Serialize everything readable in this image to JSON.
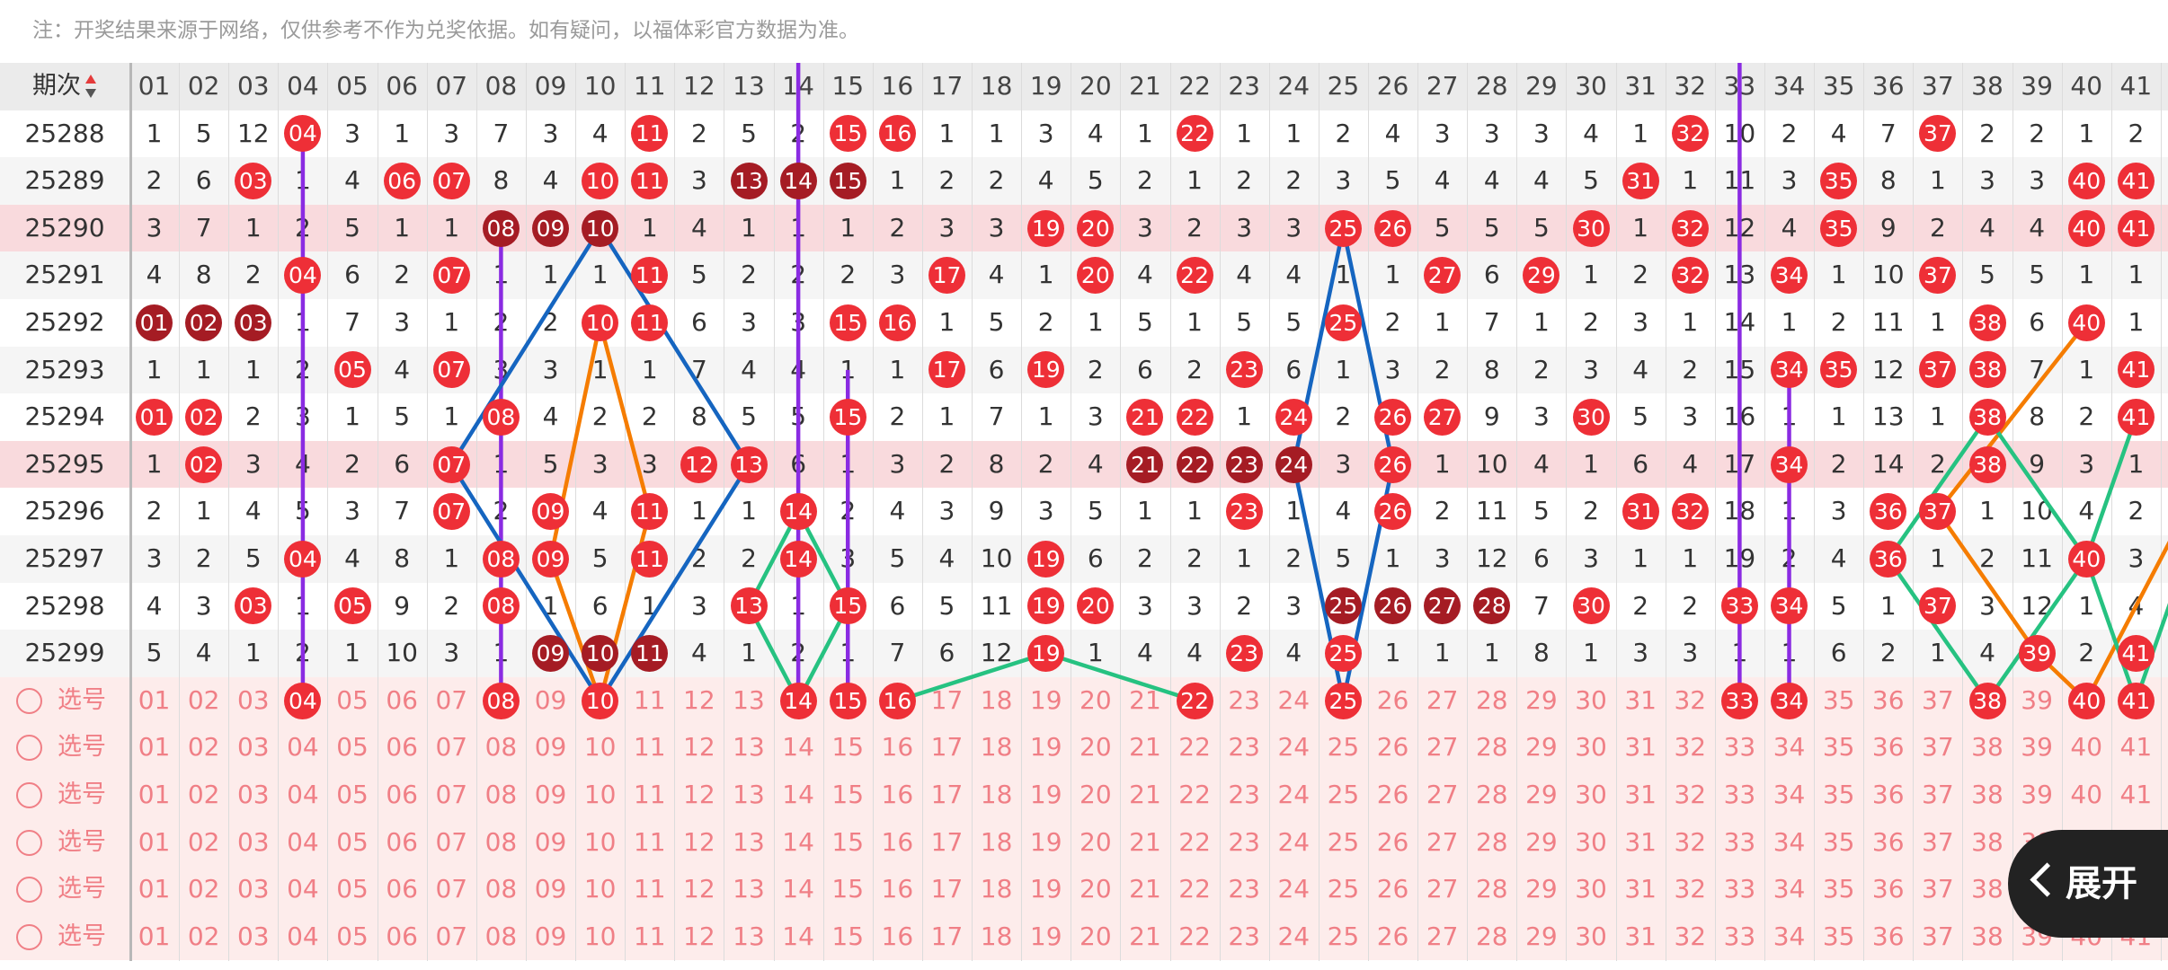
{
  "notice": "注：开奖结果来源于网络，仅供参考不作为兑奖依据。如有疑问，以福体彩官方数据为准。",
  "header": {
    "issue_label": "期次",
    "columns": [
      "01",
      "02",
      "03",
      "04",
      "05",
      "06",
      "07",
      "08",
      "09",
      "10",
      "11",
      "12",
      "13",
      "14",
      "15",
      "16",
      "17",
      "18",
      "19",
      "20",
      "21",
      "22",
      "23",
      "24",
      "25",
      "26",
      "27",
      "28",
      "29",
      "30",
      "31",
      "32",
      "33",
      "34",
      "35",
      "36",
      "37",
      "38",
      "39",
      "40",
      "41"
    ]
  },
  "colors": {
    "ball_red": "#ee2f37",
    "ball_dark": "#a51c24",
    "highlight_row": "#f9dadd",
    "pick_row": "#fdeceb",
    "pick_text": "#f07f86",
    "line_purple": "#8a2be2",
    "line_blue": "#1565c0",
    "line_orange": "#f57c00",
    "line_green": "#26c281"
  },
  "rows": [
    {
      "issue": "25288",
      "hl": false,
      "cells": [
        "1",
        "5",
        "12",
        "04",
        "3",
        "1",
        "3",
        "7",
        "3",
        "4",
        "11",
        "2",
        "5",
        "2",
        "15",
        "16",
        "1",
        "1",
        "3",
        "4",
        "1",
        "22",
        "1",
        "1",
        "2",
        "4",
        "3",
        "3",
        "3",
        "4",
        "1",
        "32",
        "10",
        "2",
        "4",
        "7",
        "37",
        "2",
        "2",
        "1",
        "2"
      ],
      "red": [
        4,
        11,
        15,
        16,
        22,
        32,
        37
      ],
      "dark": []
    },
    {
      "issue": "25289",
      "hl": false,
      "cells": [
        "2",
        "6",
        "03",
        "1",
        "4",
        "06",
        "07",
        "8",
        "4",
        "10",
        "11",
        "3",
        "13",
        "14",
        "15",
        "1",
        "2",
        "2",
        "4",
        "5",
        "2",
        "1",
        "2",
        "2",
        "3",
        "5",
        "4",
        "4",
        "4",
        "5",
        "31",
        "1",
        "11",
        "3",
        "35",
        "8",
        "1",
        "3",
        "3",
        "40",
        "41"
      ],
      "red": [
        3,
        6,
        7,
        10,
        11,
        31,
        35,
        40,
        41
      ],
      "dark": [
        13,
        14,
        15
      ]
    },
    {
      "issue": "25290",
      "hl": true,
      "cells": [
        "3",
        "7",
        "1",
        "2",
        "5",
        "1",
        "1",
        "08",
        "09",
        "10",
        "1",
        "4",
        "1",
        "1",
        "1",
        "2",
        "3",
        "3",
        "19",
        "20",
        "3",
        "2",
        "3",
        "3",
        "25",
        "26",
        "5",
        "5",
        "5",
        "30",
        "1",
        "32",
        "12",
        "4",
        "35",
        "9",
        "2",
        "4",
        "4",
        "40",
        "41"
      ],
      "red": [
        19,
        20,
        25,
        26,
        30,
        32,
        35,
        40,
        41
      ],
      "dark": [
        8,
        9,
        10
      ]
    },
    {
      "issue": "25291",
      "hl": false,
      "cells": [
        "4",
        "8",
        "2",
        "04",
        "6",
        "2",
        "07",
        "1",
        "1",
        "1",
        "11",
        "5",
        "2",
        "2",
        "2",
        "3",
        "17",
        "4",
        "1",
        "20",
        "4",
        "22",
        "4",
        "4",
        "1",
        "1",
        "27",
        "6",
        "29",
        "1",
        "2",
        "32",
        "13",
        "34",
        "1",
        "10",
        "37",
        "5",
        "5",
        "1",
        "1"
      ],
      "red": [
        4,
        7,
        11,
        17,
        20,
        22,
        27,
        29,
        32,
        34,
        37
      ],
      "dark": []
    },
    {
      "issue": "25292",
      "hl": false,
      "cells": [
        "01",
        "02",
        "03",
        "1",
        "7",
        "3",
        "1",
        "2",
        "2",
        "10",
        "11",
        "6",
        "3",
        "3",
        "15",
        "16",
        "1",
        "5",
        "2",
        "1",
        "5",
        "1",
        "5",
        "5",
        "25",
        "2",
        "1",
        "7",
        "1",
        "2",
        "3",
        "1",
        "14",
        "1",
        "2",
        "11",
        "1",
        "38",
        "6",
        "40",
        "1"
      ],
      "red": [
        10,
        11,
        15,
        16,
        25,
        38,
        40
      ],
      "dark": [
        1,
        2,
        3
      ]
    },
    {
      "issue": "25293",
      "hl": false,
      "cells": [
        "1",
        "1",
        "1",
        "2",
        "05",
        "4",
        "07",
        "3",
        "3",
        "1",
        "1",
        "7",
        "4",
        "4",
        "1",
        "1",
        "17",
        "6",
        "19",
        "2",
        "6",
        "2",
        "23",
        "6",
        "1",
        "3",
        "2",
        "8",
        "2",
        "3",
        "4",
        "2",
        "15",
        "34",
        "35",
        "12",
        "37",
        "38",
        "7",
        "1",
        "41"
      ],
      "red": [
        5,
        7,
        17,
        19,
        23,
        34,
        35,
        37,
        38,
        41
      ],
      "dark": []
    },
    {
      "issue": "25294",
      "hl": false,
      "cells": [
        "01",
        "02",
        "2",
        "3",
        "1",
        "5",
        "1",
        "08",
        "4",
        "2",
        "2",
        "8",
        "5",
        "5",
        "15",
        "2",
        "1",
        "7",
        "1",
        "3",
        "21",
        "22",
        "1",
        "24",
        "2",
        "26",
        "27",
        "9",
        "3",
        "30",
        "5",
        "3",
        "16",
        "1",
        "1",
        "13",
        "1",
        "38",
        "8",
        "2",
        "41"
      ],
      "red": [
        1,
        2,
        8,
        15,
        21,
        22,
        24,
        26,
        27,
        30,
        38,
        41
      ],
      "dark": []
    },
    {
      "issue": "25295",
      "hl": true,
      "cells": [
        "1",
        "02",
        "3",
        "4",
        "2",
        "6",
        "07",
        "1",
        "5",
        "3",
        "3",
        "12",
        "13",
        "6",
        "1",
        "3",
        "2",
        "8",
        "2",
        "4",
        "21",
        "22",
        "23",
        "24",
        "3",
        "26",
        "1",
        "10",
        "4",
        "1",
        "6",
        "4",
        "17",
        "34",
        "2",
        "14",
        "2",
        "38",
        "9",
        "3",
        "1"
      ],
      "red": [
        2,
        7,
        12,
        13,
        26,
        34,
        38
      ],
      "dark": [
        21,
        22,
        23,
        24
      ]
    },
    {
      "issue": "25296",
      "hl": false,
      "cells": [
        "2",
        "1",
        "4",
        "5",
        "3",
        "7",
        "07",
        "2",
        "09",
        "4",
        "11",
        "1",
        "1",
        "14",
        "2",
        "4",
        "3",
        "9",
        "3",
        "5",
        "1",
        "1",
        "23",
        "1",
        "4",
        "26",
        "2",
        "11",
        "5",
        "2",
        "31",
        "32",
        "18",
        "1",
        "3",
        "36",
        "37",
        "1",
        "10",
        "4",
        "2"
      ],
      "red": [
        7,
        9,
        11,
        14,
        23,
        26,
        31,
        32,
        36,
        37
      ],
      "dark": []
    },
    {
      "issue": "25297",
      "hl": false,
      "cells": [
        "3",
        "2",
        "5",
        "04",
        "4",
        "8",
        "1",
        "08",
        "09",
        "5",
        "11",
        "2",
        "2",
        "14",
        "3",
        "5",
        "4",
        "10",
        "19",
        "6",
        "2",
        "2",
        "1",
        "2",
        "5",
        "1",
        "3",
        "12",
        "6",
        "3",
        "1",
        "1",
        "19",
        "2",
        "4",
        "36",
        "1",
        "2",
        "11",
        "40",
        "3"
      ],
      "red": [
        4,
        8,
        9,
        11,
        14,
        19,
        36,
        40
      ],
      "dark": []
    },
    {
      "issue": "25298",
      "hl": false,
      "cells": [
        "4",
        "3",
        "03",
        "1",
        "05",
        "9",
        "2",
        "08",
        "1",
        "6",
        "1",
        "3",
        "13",
        "1",
        "15",
        "6",
        "5",
        "11",
        "19",
        "20",
        "3",
        "3",
        "2",
        "3",
        "25",
        "26",
        "27",
        "28",
        "7",
        "30",
        "2",
        "2",
        "33",
        "34",
        "5",
        "1",
        "37",
        "3",
        "12",
        "1",
        "4"
      ],
      "red": [
        3,
        5,
        8,
        13,
        15,
        19,
        20,
        30,
        33,
        34,
        37
      ],
      "dark": [
        25,
        26,
        27,
        28
      ]
    },
    {
      "issue": "25299",
      "hl": false,
      "cells": [
        "5",
        "4",
        "1",
        "2",
        "1",
        "10",
        "3",
        "1",
        "09",
        "10",
        "11",
        "4",
        "1",
        "2",
        "1",
        "7",
        "6",
        "12",
        "19",
        "1",
        "4",
        "4",
        "23",
        "4",
        "25",
        "1",
        "1",
        "1",
        "8",
        "1",
        "3",
        "3",
        "1",
        "1",
        "6",
        "2",
        "1",
        "4",
        "39",
        "2",
        "41"
      ],
      "red": [
        19,
        23,
        25,
        39,
        41
      ],
      "dark": [
        9,
        10,
        11
      ]
    }
  ],
  "pick_label": "选号",
  "pick_rows": [
    {
      "selected": [
        4,
        8,
        10,
        14,
        15,
        16,
        22,
        25,
        33,
        34,
        38,
        40,
        41
      ]
    },
    {
      "selected": []
    },
    {
      "selected": []
    },
    {
      "selected": []
    },
    {
      "selected": []
    },
    {
      "selected": []
    }
  ],
  "expand_label": "展开"
}
